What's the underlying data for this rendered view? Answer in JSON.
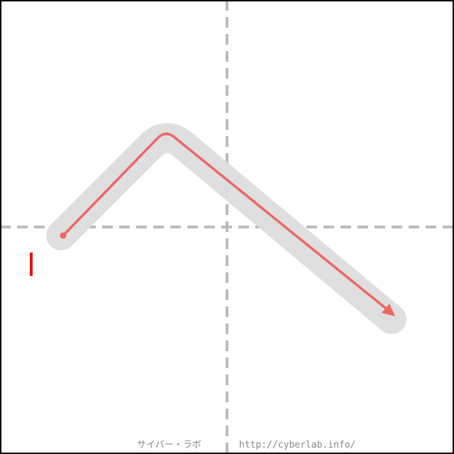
{
  "stroke_number": "1",
  "colors": {
    "background": "#ffffff",
    "frame": "#000000",
    "guide": "#bbbbbb",
    "glyph": "#dddddd",
    "stroke_path": "#ee6666",
    "stroke_number_mark": "#ee1111",
    "credit_text": "#888888"
  },
  "credit": {
    "site_name": "サイバー・ラボ",
    "url": "http://cyberlab.info/"
  }
}
